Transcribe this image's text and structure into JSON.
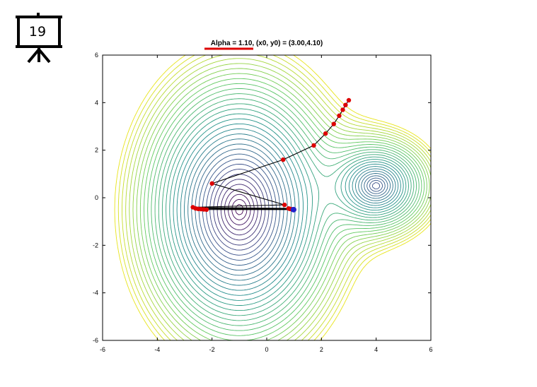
{
  "slide": {
    "number": "19"
  },
  "chart_data": {
    "type": "line",
    "title": "Alpha = 1.10, (x0, y0) = (3.00,4.10)",
    "xlabel": "",
    "ylabel": "",
    "xlim": [
      -6,
      6
    ],
    "ylim": [
      -6,
      6
    ],
    "xticks": [
      "-6",
      "-4",
      "-2",
      "0",
      "2",
      "4",
      "6"
    ],
    "yticks": [
      "6",
      "4",
      "2",
      "0",
      "-2",
      "-4",
      "-6"
    ],
    "grid": false,
    "contour": {
      "minimum_1": {
        "x": -1.0,
        "y": -0.5
      },
      "minimum_2": {
        "x": 4.0,
        "y": 0.5
      }
    },
    "series": [
      {
        "values_x": [
          3.0,
          2.88,
          2.78,
          2.65,
          2.45,
          2.15,
          1.72,
          0.6,
          -2.0,
          0.65,
          -2.7,
          0.8,
          -2.6,
          0.85,
          -2.5,
          0.9,
          -2.4,
          0.95,
          -2.3,
          1.0,
          -2.2,
          0.98
        ],
        "values_y": [
          4.1,
          3.9,
          3.7,
          3.45,
          3.1,
          2.7,
          2.2,
          1.6,
          0.6,
          -0.3,
          -0.4,
          -0.45,
          -0.45,
          -0.47,
          -0.47,
          -0.48,
          -0.48,
          -0.49,
          -0.49,
          -0.5,
          -0.5,
          -0.5
        ]
      }
    ],
    "colors": {
      "path_line": "#000000",
      "path_points": "#dd0000",
      "final_point": "#2222cc",
      "title_underline": "#dd0000",
      "contour_low": "#440154",
      "contour_high": "#e8e419"
    }
  }
}
